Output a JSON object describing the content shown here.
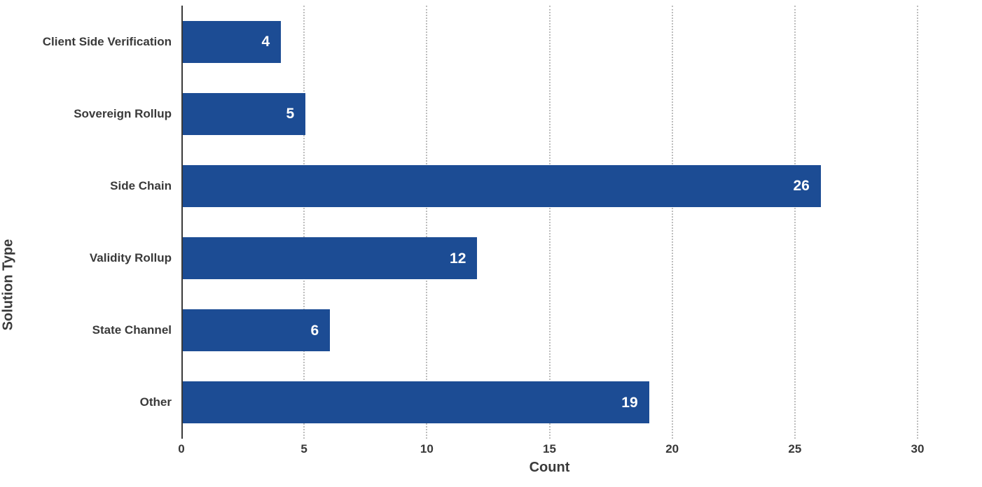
{
  "chart_data": {
    "type": "bar",
    "orientation": "horizontal",
    "title": "",
    "xlabel": "Count",
    "ylabel": "Solution Type",
    "categories": [
      "Client Side Verification",
      "Sovereign Rollup",
      "Side Chain",
      "Validity Rollup",
      "State Channel",
      "Other"
    ],
    "values": [
      4,
      5,
      26,
      12,
      6,
      19
    ],
    "xlim": [
      0,
      30
    ],
    "xticks": [
      0,
      5,
      10,
      15,
      20,
      25,
      30
    ],
    "grid": "vertical dotted gridlines at each x tick, drawn behind bars",
    "legend_position": "none",
    "colors": {
      "bar": "#1C4C94",
      "bar_value_text": "#FFFFFF",
      "axis_text": "#3A3A3A",
      "gridline": "#BDBDBD",
      "spine": "#3A3A3A",
      "background": "#FFFFFF"
    }
  }
}
